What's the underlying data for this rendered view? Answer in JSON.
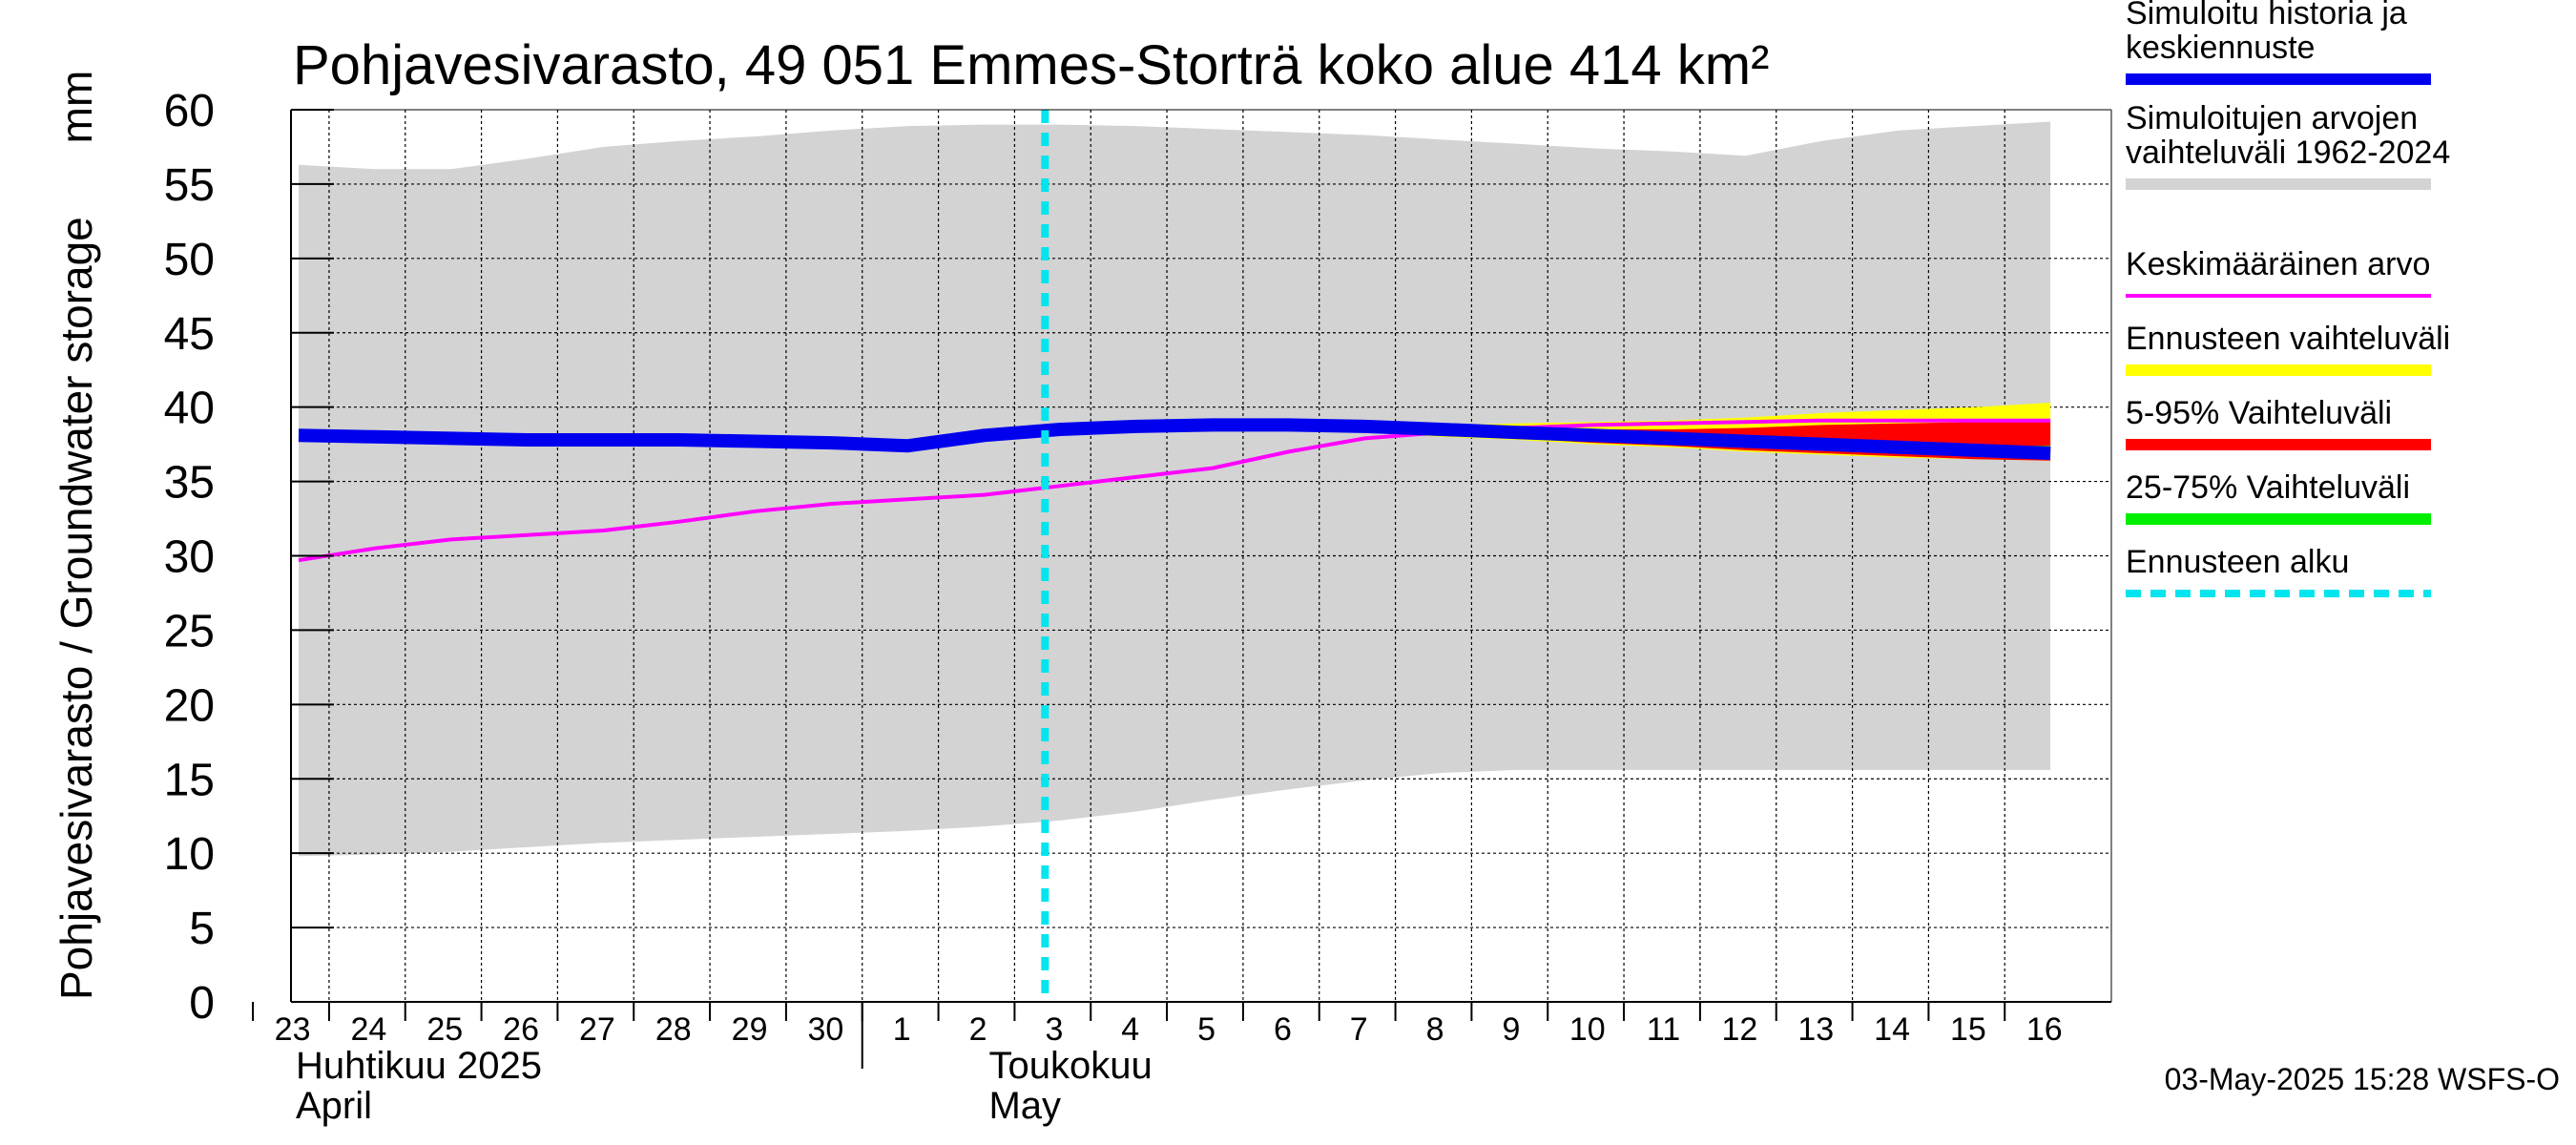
{
  "chart_data": {
    "type": "area",
    "title": "Pohjavesivarasto, 49 051 Emmes-Storträ koko alue 414 km²",
    "ylabel": "Pohjavesivarasto / Groundwater storage",
    "yunit": "mm",
    "ylim": [
      0,
      60
    ],
    "yticks": [
      0,
      5,
      10,
      15,
      20,
      25,
      30,
      35,
      40,
      45,
      50,
      55,
      60
    ],
    "grid": true,
    "x_tick_labels": [
      "23",
      "24",
      "25",
      "26",
      "27",
      "28",
      "29",
      "30",
      "1",
      "2",
      "3",
      "4",
      "5",
      "6",
      "7",
      "8",
      "9",
      "10",
      "11",
      "12",
      "13",
      "14",
      "15",
      "16"
    ],
    "month_labels": [
      {
        "fi": "Huhtikuu  2025",
        "en": "April"
      },
      {
        "fi": "Toukokuu",
        "en": "May"
      }
    ],
    "forecast_start": "3",
    "range_1962_2024": {
      "name": "Simuloitujen arvojen vaihteluväli 1962-2024",
      "upper": [
        56.3,
        56.0,
        56.0,
        56.7,
        57.5,
        57.9,
        58.2,
        58.6,
        58.9,
        59.0,
        59.0,
        58.9,
        58.7,
        58.5,
        58.3,
        58.0,
        57.7,
        57.4,
        57.2,
        56.9,
        57.9,
        58.6,
        58.9,
        59.2
      ],
      "lower": [
        9.8,
        9.9,
        10.1,
        10.4,
        10.7,
        10.9,
        11.1,
        11.3,
        11.5,
        11.8,
        12.2,
        12.8,
        13.6,
        14.3,
        14.9,
        15.4,
        15.6,
        15.6,
        15.6,
        15.6,
        15.6,
        15.6,
        15.6,
        15.6
      ]
    },
    "simulated": {
      "name": "Simuloitu historia ja keskiennuste",
      "values": [
        38.1,
        38.0,
        37.9,
        37.8,
        37.8,
        37.8,
        37.7,
        37.6,
        37.4,
        38.1,
        38.5,
        38.7,
        38.8,
        38.8,
        38.7,
        38.5,
        38.3,
        38.1,
        37.9,
        37.7,
        37.5,
        37.3,
        37.1,
        36.9
      ]
    },
    "mean": {
      "name": "Keskimääräinen arvo",
      "values": [
        29.7,
        30.5,
        31.1,
        31.4,
        31.7,
        32.3,
        33.0,
        33.5,
        33.8,
        34.1,
        34.7,
        35.3,
        35.9,
        37.0,
        37.9,
        38.3,
        38.6,
        38.8,
        38.9,
        39.0,
        39.1,
        39.1,
        39.1,
        39.1
      ]
    },
    "forecast_bands": {
      "start_index": 10,
      "yellow": {
        "name": "Ennusteen vaihteluväli",
        "upper": [
          38.5,
          38.7,
          38.8,
          38.8,
          38.8,
          38.8,
          38.9,
          39.0,
          39.1,
          39.3,
          39.6,
          39.8,
          40.0,
          40.3
        ],
        "lower": [
          38.5,
          38.6,
          38.6,
          38.5,
          38.3,
          38.0,
          37.8,
          37.5,
          37.3,
          37.0,
          36.8,
          36.6,
          36.5,
          36.4
        ]
      },
      "red": {
        "name": "5-95% Vaihteluväli",
        "upper": [
          38.5,
          38.7,
          38.8,
          38.8,
          38.7,
          38.6,
          38.5,
          38.5,
          38.5,
          38.6,
          38.8,
          38.9,
          39.0,
          39.1
        ],
        "lower": [
          38.5,
          38.6,
          38.6,
          38.5,
          38.4,
          38.1,
          37.9,
          37.6,
          37.4,
          37.1,
          36.9,
          36.7,
          36.5,
          36.4
        ]
      },
      "green": {
        "name": "25-75% Vaihteluväli",
        "upper": [
          38.5,
          38.7,
          38.8,
          38.8,
          38.7,
          38.5,
          38.3,
          38.1,
          37.9,
          37.7,
          37.6,
          37.5,
          37.4,
          37.4
        ],
        "lower": [
          38.5,
          38.6,
          38.7,
          38.7,
          38.6,
          38.4,
          38.2,
          37.9,
          37.7,
          37.5,
          37.3,
          37.1,
          36.9,
          36.8
        ]
      }
    },
    "legend": [
      {
        "label": "Simuloitu historia ja keskiennuste",
        "color": "#0000ee",
        "style": "thick"
      },
      {
        "label": "Simuloitujen arvojen vaihteluväli 1962-2024",
        "color": "#d3d3d3",
        "style": "thick"
      },
      {
        "label": "Keskimääräinen arvo",
        "color": "#ff00ff",
        "style": "thin"
      },
      {
        "label": "Ennusteen vaihteluväli",
        "color": "#ffff00",
        "style": "thick"
      },
      {
        "label": "5-95% Vaihteluväli",
        "color": "#ff0000",
        "style": "thick"
      },
      {
        "label": "25-75% Vaihteluväli",
        "color": "#00ee00",
        "style": "thick"
      },
      {
        "label": "Ennusteen alku",
        "color": "#00e5ee",
        "style": "dashed"
      }
    ],
    "legend_placement": "right"
  },
  "footer": "03-May-2025 15:28 WSFS-O"
}
